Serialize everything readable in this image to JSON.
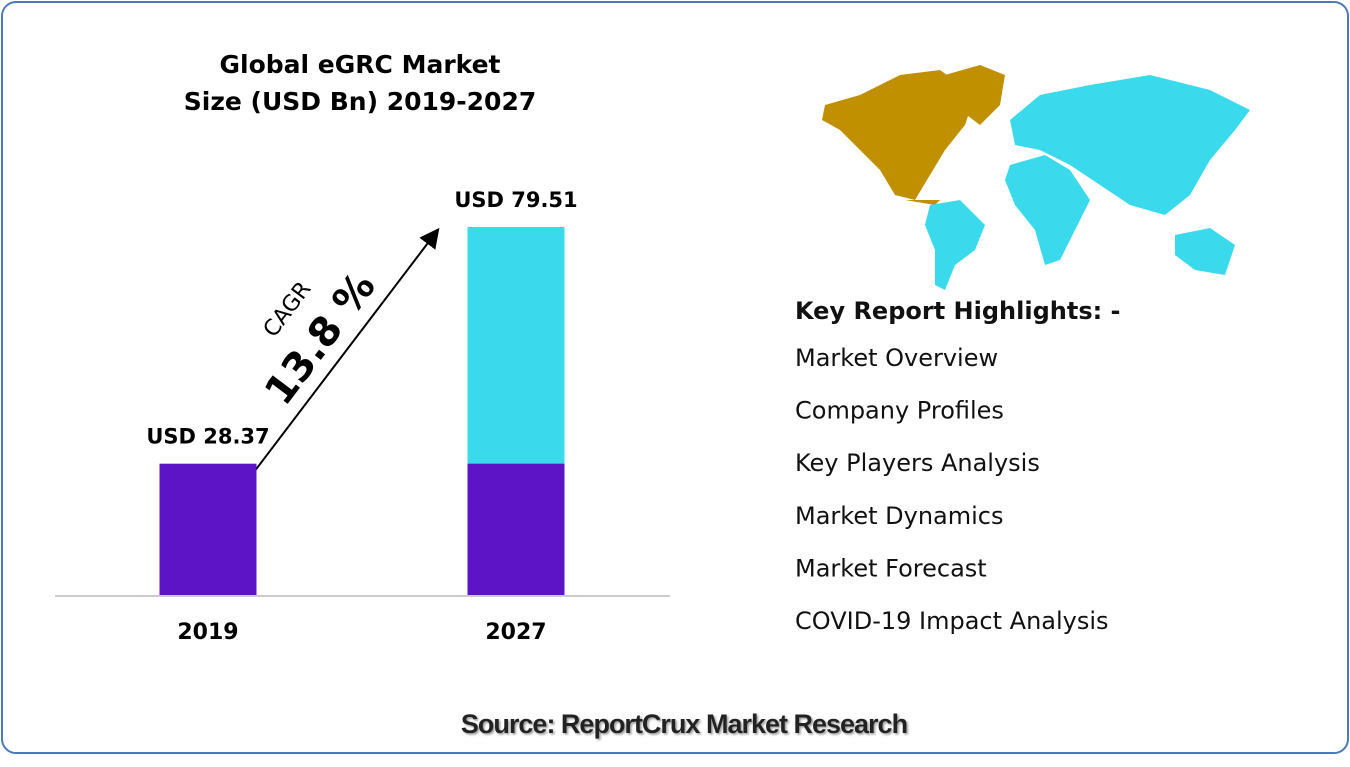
{
  "chart_data": {
    "type": "bar",
    "title": [
      "Global eGRC Market",
      "Size (USD Bn) 2019-2027"
    ],
    "categories": [
      "2019",
      "2027"
    ],
    "values": [
      28.37,
      79.51
    ],
    "value_labels": [
      "USD 28.37",
      "USD 79.51"
    ],
    "base_color": "#5c14c6",
    "growth_color": "#3ad9ec",
    "annotation": {
      "label": "CAGR",
      "value": "13.8 %"
    }
  },
  "highlights": {
    "title": "Key Report Highlights: -",
    "items": [
      "Market Overview",
      "Company Profiles",
      "Key Players Analysis",
      "Market Dynamics",
      "Market Forecast",
      "COVID-19 Impact Analysis"
    ]
  },
  "source": "Source: ReportCrux Market Research"
}
